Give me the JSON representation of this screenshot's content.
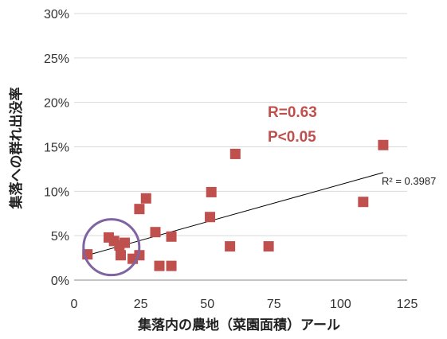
{
  "chart_data": {
    "type": "scatter",
    "title": "",
    "xlabel": "集落内の農地（菜園面積）アール",
    "ylabel": "集落への群れ出没率",
    "xlim": [
      0,
      125
    ],
    "ylim": [
      0,
      30
    ],
    "x_ticks": [
      "0",
      "25",
      "50",
      "75",
      "100",
      "125"
    ],
    "y_ticks": [
      "0%",
      "5%",
      "10%",
      "15%",
      "20%",
      "25%",
      "30%"
    ],
    "grid": "horizontal",
    "series": [
      {
        "color": "#c0504d",
        "marker": "square",
        "points": [
          {
            "x": 5,
            "y": 2.9
          },
          {
            "x": 13,
            "y": 4.8
          },
          {
            "x": 15,
            "y": 4.4
          },
          {
            "x": 17,
            "y": 3.9
          },
          {
            "x": 17.5,
            "y": 2.8
          },
          {
            "x": 19,
            "y": 4.2
          },
          {
            "x": 22,
            "y": 2.4
          },
          {
            "x": 24.5,
            "y": 8.0
          },
          {
            "x": 24.5,
            "y": 2.8
          },
          {
            "x": 27,
            "y": 9.2
          },
          {
            "x": 30.5,
            "y": 5.4
          },
          {
            "x": 32,
            "y": 1.6
          },
          {
            "x": 36.5,
            "y": 4.9
          },
          {
            "x": 36.5,
            "y": 1.6
          },
          {
            "x": 51,
            "y": 7.1
          },
          {
            "x": 51.5,
            "y": 9.9
          },
          {
            "x": 58.5,
            "y": 3.8
          },
          {
            "x": 60.5,
            "y": 14.2
          },
          {
            "x": 73,
            "y": 3.8
          },
          {
            "x": 108.5,
            "y": 8.8
          },
          {
            "x": 116,
            "y": 15.2
          }
        ]
      }
    ],
    "trendline": {
      "type": "linear",
      "color": "#000000",
      "x0": 5,
      "y0": 2.8,
      "x1": 116,
      "y1": 12.1,
      "label": "R² = 0.3987"
    },
    "annotations": {
      "r_text": "R=0.63",
      "p_text": "P<0.05",
      "stat_color": "#c0504d",
      "circle_color": "#8064a2",
      "circle_center": {
        "x": 14,
        "y": 3.7
      }
    }
  }
}
